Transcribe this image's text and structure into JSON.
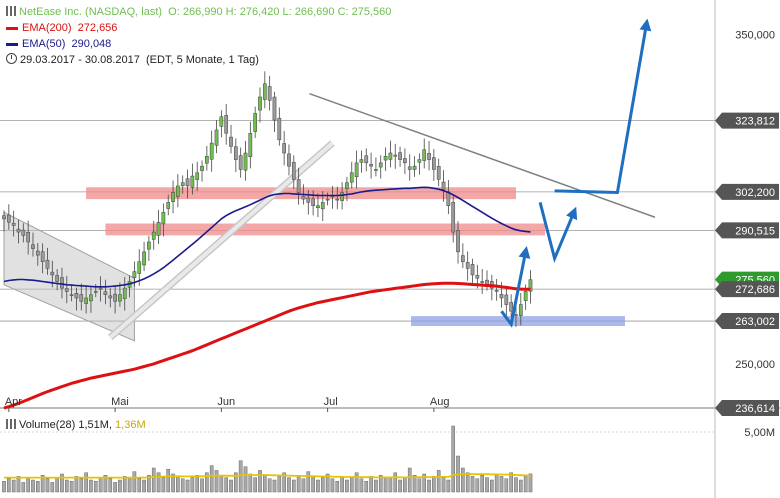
{
  "legend": {
    "title": "NetEase Inc. (NASDAQ, last)",
    "ohlc": "O: 266,990  H: 276,420  L: 266,690  C: 275,560",
    "ema200_label": "EMA(200)",
    "ema200_value": "272,656",
    "ema50_label": "EMA(50)",
    "ema50_value": "290,048",
    "period": "29.03.2017 - 30.08.2017",
    "period_detail": "(EDT, 5 Monate, 1 Tag)",
    "volume_label": "Volume(28)",
    "volume_value": "1,51M",
    "volume_avg": "1,36M"
  },
  "colors": {
    "ema200": "#dd1111",
    "ema50": "#1a1a8c",
    "up_candle": "#6fbf50",
    "down_candle": "#9a9a9a",
    "resistance": "#f08a8a",
    "support": "#8fa0e6",
    "arrows": "#1f6fc0",
    "channel": "#bdbdbd",
    "trendline": "#808080",
    "last_price_badge": "#2f9b2f",
    "price_badge": "#555555",
    "volume_avg": "#e8c400"
  },
  "chart_data": {
    "type": "candlestick",
    "ylim": [
      236.614,
      358
    ],
    "ticks_y": [
      {
        "value": 350,
        "label": "350,000",
        "style": "plain"
      },
      {
        "value": 323.812,
        "label": "323,812",
        "style": "badge"
      },
      {
        "value": 302.2,
        "label": "302,200",
        "style": "badge"
      },
      {
        "value": 290.515,
        "label": "290,515",
        "style": "badge"
      },
      {
        "value": 275.56,
        "label": "275,560",
        "style": "last"
      },
      {
        "value": 272.686,
        "label": "272,686",
        "style": "badge"
      },
      {
        "value": 263.002,
        "label": "263,002",
        "style": "badge"
      },
      {
        "value": 250,
        "label": "250,000",
        "style": "plain"
      },
      {
        "value": 236.614,
        "label": "236,614",
        "style": "badge"
      }
    ],
    "x_labels": [
      {
        "index": 1,
        "label": "Apr"
      },
      {
        "index": 23,
        "label": "Mai"
      },
      {
        "index": 45,
        "label": "Jun"
      },
      {
        "index": 67,
        "label": "Jul"
      },
      {
        "index": 89,
        "label": "Aug"
      }
    ],
    "horizontal_levels": [
      323.812,
      302.2,
      290.515,
      272.686,
      263.002
    ],
    "close": [
      294,
      293,
      292,
      290,
      289,
      287,
      285,
      283,
      281,
      279,
      277,
      275,
      273,
      272,
      271,
      270,
      269,
      270,
      271,
      272,
      273,
      271,
      270,
      269,
      271,
      273,
      275,
      278,
      281,
      284,
      287,
      290,
      293,
      296,
      299,
      302,
      304,
      305,
      304,
      307,
      308,
      310,
      313,
      317,
      321,
      325,
      320,
      316,
      312,
      309,
      314,
      320,
      326,
      331,
      335,
      330,
      324,
      318,
      314,
      310,
      306,
      302,
      300,
      299,
      298,
      298,
      299,
      300,
      301,
      300,
      302,
      305,
      308,
      311,
      312,
      311,
      310,
      309,
      311,
      313,
      314,
      313,
      312,
      311,
      309,
      310,
      312,
      315,
      312,
      309,
      306,
      303,
      298,
      290,
      284,
      281,
      279,
      277,
      276,
      275,
      274,
      273,
      272,
      270,
      268,
      266,
      265,
      268,
      272,
      275.56
    ],
    "ema200": [
      236.614,
      237,
      237.5,
      238,
      238.6,
      239.2,
      239.8,
      240.4,
      241,
      241.6,
      242.1,
      242.6,
      243.1,
      243.6,
      244.1,
      244.5,
      244.9,
      245.3,
      245.7,
      246,
      246.3,
      246.6,
      246.9,
      247.2,
      247.5,
      247.8,
      248.1,
      248.4,
      248.8,
      249.2,
      249.6,
      250,
      250.5,
      251,
      251.5,
      252,
      252.5,
      253,
      253.5,
      254,
      254.6,
      255.2,
      255.8,
      256.4,
      257,
      257.6,
      258.2,
      258.8,
      259.4,
      260,
      260.6,
      261.2,
      261.8,
      262.4,
      263,
      263.6,
      264.2,
      264.8,
      265.4,
      266,
      266.5,
      267,
      267.4,
      267.8,
      268.2,
      268.6,
      268.9,
      269.2,
      269.5,
      269.8,
      270.1,
      270.4,
      270.7,
      271,
      271.3,
      271.6,
      271.9,
      272.1,
      272.3,
      272.5,
      272.7,
      272.9,
      273.1,
      273.3,
      273.5,
      273.7,
      273.9,
      274.1,
      274.2,
      274.3,
      274.4,
      274.5,
      274.5,
      274.5,
      274.4,
      274.3,
      274.2,
      274.1,
      274,
      273.9,
      273.8,
      273.7,
      273.6,
      273.4,
      273.2,
      273,
      272.8,
      272.7,
      272.65,
      272.656
    ],
    "ema50": [
      275,
      275.3,
      275.5,
      275.6,
      275.6,
      275.5,
      275.4,
      275.2,
      275,
      274.8,
      274.6,
      274.4,
      274.2,
      274,
      273.9,
      273.8,
      273.7,
      273.6,
      273.5,
      273.4,
      273.4,
      273.4,
      273.5,
      273.6,
      273.8,
      274,
      274.3,
      274.7,
      275.2,
      275.8,
      276.5,
      277.3,
      278.2,
      279.2,
      280.3,
      281.5,
      282.7,
      283.9,
      285.1,
      286.3,
      287.5,
      288.8,
      290.1,
      291.4,
      292.7,
      294,
      295,
      295.8,
      296.5,
      297.1,
      297.7,
      298.3,
      299,
      299.7,
      300.4,
      301,
      301.4,
      301.6,
      301.7,
      301.7,
      301.6,
      301.5,
      301.4,
      301.3,
      301.2,
      301.1,
      301.1,
      301.1,
      301.1,
      301.1,
      301.2,
      301.4,
      301.6,
      301.9,
      302.2,
      302.4,
      302.6,
      302.7,
      302.8,
      302.9,
      303,
      303.1,
      303.2,
      303.3,
      303.3,
      303.4,
      303.5,
      303.6,
      303.5,
      303.3,
      303,
      302.6,
      302,
      301.3,
      300.5,
      299.6,
      298.7,
      297.8,
      296.9,
      296,
      295.1,
      294.2,
      293.4,
      292.6,
      291.9,
      291.2,
      290.7,
      290.4,
      290.2,
      290.048
    ],
    "volume": [
      0.9,
      1.1,
      1.0,
      1.3,
      0.8,
      1.2,
      1.0,
      0.9,
      1.4,
      1.1,
      0.8,
      1.2,
      1.5,
      1.0,
      0.9,
      1.3,
      1.1,
      1.6,
      1.0,
      0.9,
      1.2,
      1.4,
      1.1,
      0.8,
      1.0,
      1.3,
      1.2,
      1.7,
      1.1,
      1.0,
      1.4,
      2.0,
      1.6,
      1.2,
      1.9,
      1.5,
      1.3,
      1.1,
      1.0,
      1.2,
      1.4,
      1.1,
      1.6,
      2.2,
      1.8,
      1.4,
      1.2,
      1.0,
      1.6,
      2.6,
      2.1,
      1.5,
      1.2,
      1.8,
      1.4,
      1.1,
      1.0,
      1.3,
      1.6,
      1.2,
      1.0,
      1.4,
      1.1,
      1.7,
      1.3,
      1.0,
      1.2,
      1.5,
      1.1,
      0.9,
      1.3,
      1.0,
      1.2,
      1.6,
      1.1,
      0.9,
      1.3,
      1.0,
      1.4,
      1.2,
      1.1,
      1.6,
      1.0,
      1.2,
      2.0,
      1.4,
      1.1,
      1.5,
      1.0,
      1.3,
      1.8,
      1.2,
      1.0,
      5.5,
      3.0,
      2.0,
      1.6,
      1.3,
      1.1,
      1.4,
      1.2,
      1.0,
      1.5,
      1.3,
      1.1,
      1.6,
      1.2,
      1.0,
      1.3,
      1.51
    ],
    "volume_avg": [
      1.2,
      1.2,
      1.2,
      1.2,
      1.2,
      1.2,
      1.2,
      1.2,
      1.2,
      1.2,
      1.2,
      1.2,
      1.2,
      1.2,
      1.2,
      1.2,
      1.2,
      1.2,
      1.2,
      1.2,
      1.2,
      1.2,
      1.2,
      1.2,
      1.2,
      1.2,
      1.2,
      1.2,
      1.2,
      1.2,
      1.22,
      1.25,
      1.27,
      1.28,
      1.3,
      1.31,
      1.31,
      1.3,
      1.3,
      1.3,
      1.31,
      1.31,
      1.32,
      1.35,
      1.37,
      1.37,
      1.36,
      1.35,
      1.36,
      1.4,
      1.42,
      1.42,
      1.41,
      1.42,
      1.42,
      1.41,
      1.39,
      1.38,
      1.38,
      1.37,
      1.35,
      1.34,
      1.33,
      1.33,
      1.32,
      1.3,
      1.29,
      1.29,
      1.28,
      1.27,
      1.26,
      1.25,
      1.25,
      1.25,
      1.24,
      1.23,
      1.23,
      1.22,
      1.22,
      1.22,
      1.22,
      1.23,
      1.22,
      1.22,
      1.24,
      1.24,
      1.24,
      1.25,
      1.24,
      1.24,
      1.26,
      1.26,
      1.25,
      1.4,
      1.46,
      1.48,
      1.49,
      1.49,
      1.49,
      1.49,
      1.48,
      1.47,
      1.47,
      1.46,
      1.45,
      1.44,
      1.42,
      1.4,
      1.38,
      1.36
    ],
    "volume_ylim": [
      0,
      6
    ],
    "volume_tick": {
      "value": 5,
      "label": "5,00M"
    },
    "resistance_zones": [
      {
        "from": 17,
        "to": 106,
        "low": 300,
        "high": 303.6
      },
      {
        "from": 21,
        "to": 112,
        "low": 289,
        "high": 292.6
      }
    ],
    "support_zones": [
      {
        "from": 0,
        "to": 114,
        "low": 261.5,
        "high": 264.5
      }
    ],
    "downtrend_line": {
      "from": [
        56,
        332
      ],
      "to": [
        121,
        294.5
      ]
    },
    "rising_channel_line": {
      "from": [
        22,
        258
      ],
      "to": [
        68,
        317
      ]
    },
    "descending_channel": {
      "upper": {
        "from": [
          0,
          296
        ],
        "to": [
          27,
          276
        ]
      },
      "lower": {
        "from": [
          0,
          274
        ],
        "to": [
          27,
          257
        ]
      }
    },
    "forecast_arrows": [
      {
        "points": [
          [
            103,
            266
          ],
          [
            105,
            262
          ],
          [
            108,
            284
          ]
        ]
      },
      {
        "points": [
          [
            111,
            299
          ],
          [
            114,
            282
          ],
          [
            118,
            296
          ]
        ]
      },
      {
        "points": [
          [
            114,
            302.5
          ],
          [
            127,
            302
          ],
          [
            133,
            353
          ]
        ]
      }
    ]
  }
}
